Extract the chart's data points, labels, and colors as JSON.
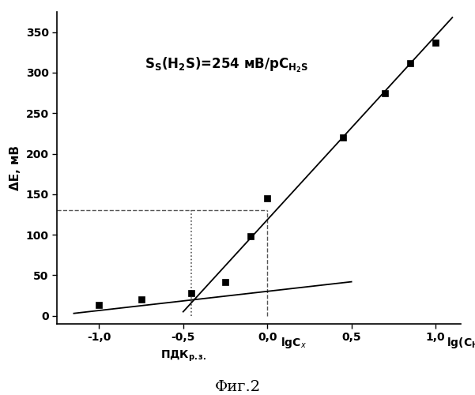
{
  "ylabel": "ΔE, мВ",
  "data_points_x": [
    -1.0,
    -0.75,
    -0.45,
    -0.25,
    -0.1,
    0.0,
    0.45,
    0.7,
    0.85,
    1.0
  ],
  "data_points_y": [
    13,
    20,
    28,
    42,
    98,
    145,
    220,
    275,
    312,
    337
  ],
  "line1_x": [
    -1.15,
    0.5
  ],
  "line1_y": [
    3,
    42
  ],
  "line2_x": [
    -0.5,
    1.1
  ],
  "line2_y": [
    5,
    368
  ],
  "dashed_hline_y": 130,
  "dashed_vline1_x": -0.45,
  "dashed_vline2_x": 0.0,
  "xlim": [
    -1.25,
    1.15
  ],
  "ylim": [
    -10,
    375
  ],
  "xticks": [
    -1.0,
    -0.5,
    0.0,
    0.5,
    1.0
  ],
  "yticks": [
    0,
    50,
    100,
    150,
    200,
    250,
    300,
    350
  ],
  "background_color": "#ffffff",
  "line_color": "#000000",
  "marker_color": "#000000",
  "dashed_color": "#555555",
  "fig_caption": "Фиг.2"
}
